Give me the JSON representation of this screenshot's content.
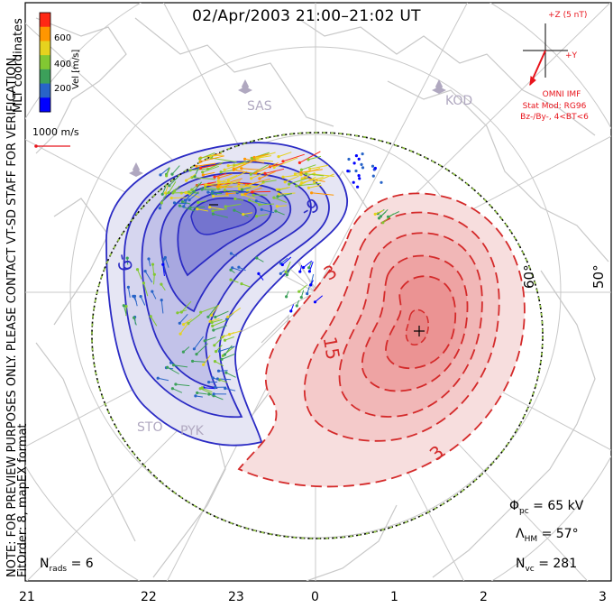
{
  "title": "02/Apr/2003 21:00–21:02 UT",
  "left_notes": {
    "preview": "NOTE: FOR PREVIEW PURPOSES ONLY. PLEASE CONTACT VT-SD STAFF FOR VERIFICATION.",
    "fitorder": "FitOrder: 8, mapEX format"
  },
  "coordinates_label": "MLT coordinates",
  "velocity_colorbar": {
    "label": "Vel [m/s]",
    "ticks": [
      "600",
      "400",
      "200"
    ],
    "colors": [
      "#0000ff",
      "#2864c8",
      "#3ca05a",
      "#82c832",
      "#e6d21e",
      "#ff9600",
      "#ff2814"
    ]
  },
  "scale_vector": {
    "label": "1000 m/s",
    "color": "#e8141c"
  },
  "imf": {
    "scale": "+Z (5 nT)",
    "axis": "+Y",
    "source": "OMNI IMF",
    "model": "Stat Mod: RG96",
    "condition": "Bz-/By-, 4<BT<6",
    "color": "#e8141c"
  },
  "radars": [
    "SAS",
    "KOD",
    "STO",
    "PYK"
  ],
  "latitude_labels": [
    "60°",
    "50°"
  ],
  "contour_labels": {
    "negative": [
      "-9",
      "-9"
    ],
    "positive": [
      "3",
      "15",
      "3"
    ]
  },
  "stats": {
    "phi_pc": "= 65 kV",
    "lambda_hm": "= 57°",
    "n_vc": "= 281",
    "n_rads": "= 6"
  },
  "mlt_axis": [
    "21",
    "22",
    "23",
    "0",
    "1",
    "2",
    "3"
  ],
  "colors": {
    "negative_cell": "#2b2bc4",
    "positive_cell": "#d42a2a",
    "boundary": "#2c8a2c",
    "coastline": "#c8c8c8"
  }
}
